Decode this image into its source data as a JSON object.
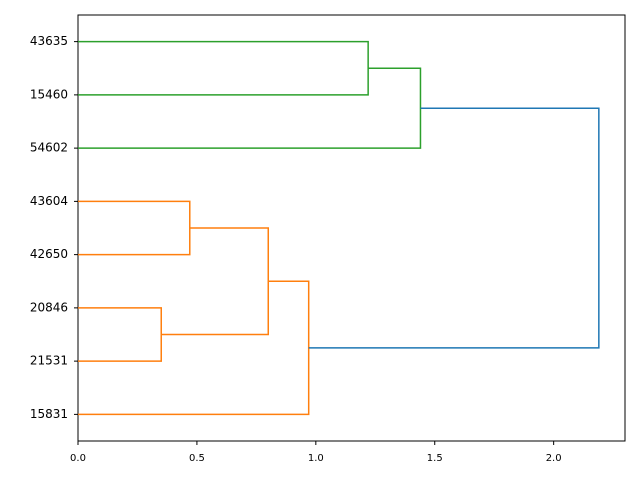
{
  "chart_data": {
    "type": "dendrogram",
    "orientation": "right",
    "xlim": [
      0,
      2.3
    ],
    "xticks": [
      {
        "value": 0,
        "label": "0.0"
      },
      0.5,
      {
        "value": 1,
        "label": "1.0"
      },
      1.5,
      {
        "value": 2,
        "label": "2.0"
      }
    ],
    "tree": {
      "distance": 2.19,
      "color": "#1f77b4",
      "children": [
        {
          "distance": 1.44,
          "color": "#2ca02c",
          "children": [
            {
              "distance": 1.22,
              "color": "#2ca02c",
              "children": [
                {
                  "label": "43635"
                },
                {
                  "label": "15460"
                }
              ]
            },
            {
              "label": "54602"
            }
          ]
        },
        {
          "distance": 0.97,
          "color": "#ff7f0e",
          "children": [
            {
              "distance": 0.8,
              "color": "#ff7f0e",
              "children": [
                {
                  "distance": 0.47,
                  "color": "#ff7f0e",
                  "children": [
                    {
                      "label": "43604"
                    },
                    {
                      "label": "42650"
                    }
                  ]
                },
                {
                  "distance": 0.35,
                  "color": "#ff7f0e",
                  "children": [
                    {
                      "label": "20846"
                    },
                    {
                      "label": "21531"
                    }
                  ]
                }
              ]
            },
            {
              "label": "15831"
            }
          ]
        }
      ]
    }
  }
}
